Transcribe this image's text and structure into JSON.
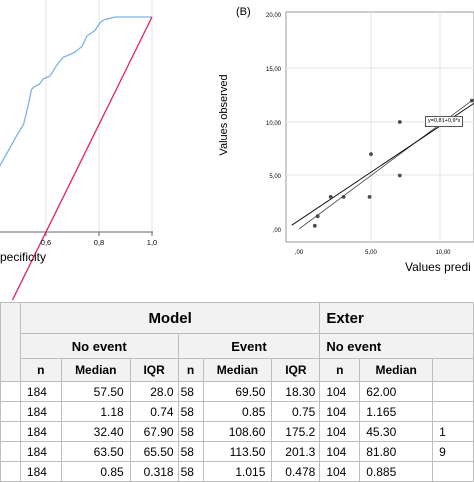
{
  "chart_data": [
    {
      "type": "line",
      "xlabel_fragment": "pecificity",
      "x_ticks": [
        "0,6",
        "0,8",
        "1,0"
      ],
      "xlim": [
        0.4,
        1.0
      ],
      "series": [
        {
          "color": "#7fb2e5",
          "points": [
            [
              0.4,
              0.7
            ],
            [
              0.445,
              0.74
            ],
            [
              0.49,
              0.78
            ],
            [
              0.515,
              0.8
            ],
            [
              0.53,
              0.83
            ],
            [
              0.545,
              0.865
            ],
            [
              0.555,
              0.87
            ],
            [
              0.575,
              0.875
            ],
            [
              0.59,
              0.885
            ],
            [
              0.615,
              0.89
            ],
            [
              0.64,
              0.91
            ],
            [
              0.665,
              0.925
            ],
            [
              0.69,
              0.93
            ],
            [
              0.71,
              0.935
            ],
            [
              0.735,
              0.945
            ],
            [
              0.755,
              0.965
            ],
            [
              0.785,
              0.975
            ],
            [
              0.805,
              0.99
            ],
            [
              0.82,
              0.995
            ],
            [
              0.86,
              1.0
            ],
            [
              1.0,
              1.0
            ]
          ]
        },
        {
          "color": "#e0245e",
          "points": [
            [
              0.4,
              0.4
            ],
            [
              1.0,
              1.0
            ]
          ]
        }
      ]
    },
    {
      "type": "scatter",
      "panel_label": "(B)",
      "xlabel": "Values predi",
      "ylabel": "Values observed",
      "x_ticks": [
        ",00",
        "5,00",
        "10,00"
      ],
      "y_ticks": [
        ",00",
        "5,00",
        "10,00",
        "15,00",
        "20,00"
      ],
      "xlim": [
        -0.5,
        12.5
      ],
      "ylim": [
        0,
        21
      ],
      "points": [
        [
          1.1,
          0.3
        ],
        [
          1.3,
          1.2
        ],
        [
          2.2,
          3.0
        ],
        [
          3.1,
          3.0
        ],
        [
          4.9,
          3.0
        ],
        [
          5.0,
          7.0
        ],
        [
          7.0,
          5.0
        ],
        [
          7.0,
          10.0
        ],
        [
          12.0,
          12.0
        ]
      ],
      "fit_line": {
        "label": "y=0,81+0,9*x",
        "intercept": 0.81,
        "slope": 0.9
      },
      "reference_line": {
        "intercept": 0,
        "slope": 1
      }
    }
  ],
  "table": {
    "groups": [
      "Model",
      "Exter"
    ],
    "subgroups": [
      "No event",
      "Event",
      "No event"
    ],
    "stat_headers": [
      "n",
      "Median",
      "IQR",
      "n",
      "Median",
      "IQR",
      "n",
      "Median"
    ],
    "rows": [
      [
        "184",
        "57.50",
        "28.0",
        "58",
        "69.50",
        "18.30",
        "104",
        "62.00"
      ],
      [
        "184",
        "1.18",
        "0.74",
        "58",
        "0.85",
        "0.75",
        "104",
        "1.165"
      ],
      [
        "184",
        "32.40",
        "67.90",
        "58",
        "108.60",
        "175.2",
        "104",
        "45.30"
      ],
      [
        "184",
        "63.50",
        "65.50",
        "58",
        "113.50",
        "201.3",
        "104",
        "81.80"
      ],
      [
        "184",
        "0.85",
        "0.318",
        "58",
        "1.015",
        "0.478",
        "104",
        "0.885"
      ]
    ],
    "right_edge_fragments": [
      "",
      "",
      "1",
      "9",
      ""
    ]
  }
}
